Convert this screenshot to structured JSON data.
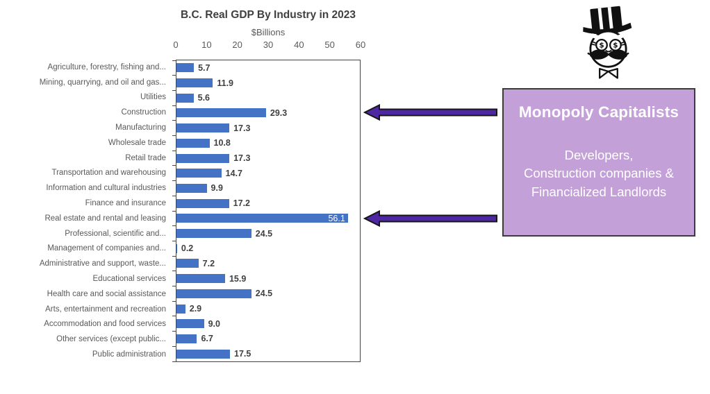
{
  "chart": {
    "title": "B.C. Real GDP By Industry in 2023",
    "axis_title": "$Billions"
  },
  "chart_data": {
    "type": "bar",
    "orientation": "horizontal",
    "title": "B.C. Real GDP By Industry in 2023",
    "xlabel": "$Billions",
    "ylabel": "",
    "xlim": [
      0,
      60
    ],
    "ticks": [
      0,
      10,
      20,
      30,
      40,
      50,
      60
    ],
    "grid": false,
    "legend": false,
    "bar_color": "#4472c4",
    "categories": [
      "Agriculture, forestry, fishing and...",
      "Mining, quarrying, and oil and gas...",
      "Utilities",
      "Construction",
      "Manufacturing",
      "Wholesale trade",
      "Retail trade",
      "Transportation and warehousing",
      "Information and cultural industries",
      "Finance and insurance",
      "Real estate and rental and leasing",
      "Professional, scientific and...",
      "Management of companies and...",
      "Administrative and support, waste...",
      "Educational services",
      "Health care and social assistance",
      "Arts, entertainment and recreation",
      "Accommodation and food services",
      "Other services (except public...",
      "Public administration"
    ],
    "values": [
      5.7,
      11.9,
      5.6,
      29.3,
      17.3,
      10.8,
      17.3,
      14.7,
      9.9,
      17.2,
      56.1,
      24.5,
      0.2,
      7.2,
      15.9,
      24.5,
      2.9,
      9.0,
      6.7,
      17.5
    ],
    "value_labels": [
      "5.7",
      "11.9",
      "5.6",
      "29.3",
      "17.3",
      "10.8",
      "17.3",
      "14.7",
      "9.9",
      "17.2",
      "56.1",
      "24.5",
      "0.2",
      "7.2",
      "15.9",
      "24.5",
      "2.9",
      "9.0",
      "6.7",
      "17.5"
    ],
    "inside_label_index": 10
  },
  "annotation_box": {
    "title": "Monopoly Capitalists",
    "lines": [
      "Developers,",
      "Construction companies &",
      "Financialized Landlords"
    ],
    "fill_color": "#c4a0d8",
    "border_color": "#3b3b3b",
    "text_color": "#ffffff"
  },
  "arrows": {
    "color": "#4e28a3",
    "outline_color": "#161616",
    "targets": [
      "Construction",
      "Real estate and rental and leasing"
    ]
  },
  "icons": {
    "monopoly_man": "monopoly-man-icon"
  }
}
